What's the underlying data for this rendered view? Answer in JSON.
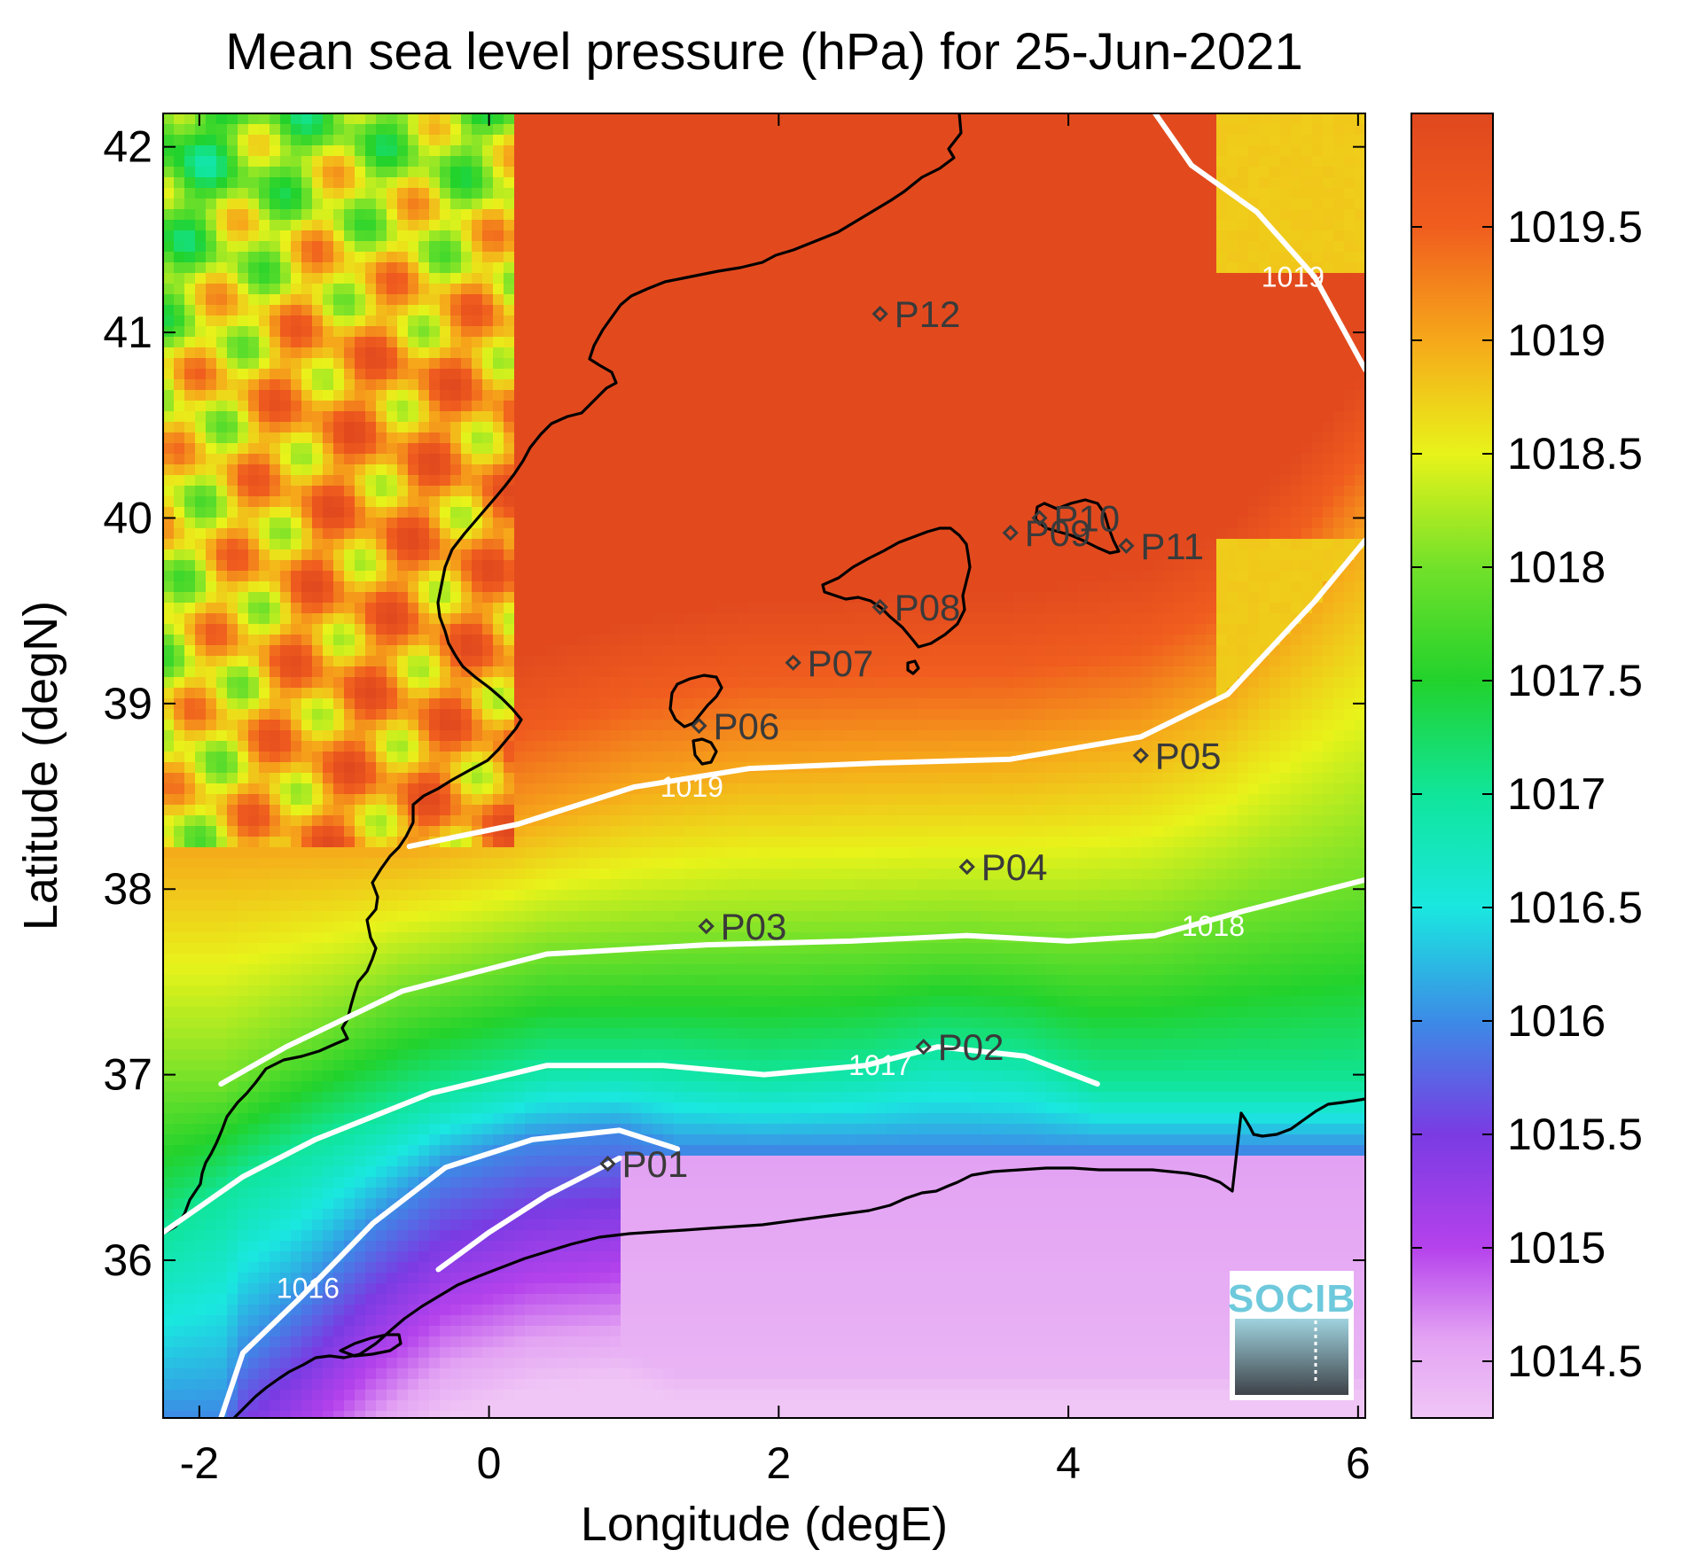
{
  "title": "Mean sea level pressure (hPa) for 25-Jun-2021",
  "chart_data": {
    "type": "heatmap",
    "title": "Mean sea level pressure (hPa) for 25-Jun-2021",
    "xlabel": "Longitude (degE)",
    "ylabel": "Latitude (degN)",
    "xlim": [
      -2.25,
      6.05
    ],
    "ylim": [
      35.15,
      42.18
    ],
    "x_ticks": [
      {
        "value": -2,
        "label": "-2"
      },
      {
        "value": 0,
        "label": "0"
      },
      {
        "value": 2,
        "label": "2"
      },
      {
        "value": 4,
        "label": "4"
      },
      {
        "value": 6,
        "label": "6"
      }
    ],
    "y_ticks": [
      {
        "value": 36,
        "label": "36"
      },
      {
        "value": 37,
        "label": "37"
      },
      {
        "value": 38,
        "label": "38"
      },
      {
        "value": 39,
        "label": "39"
      },
      {
        "value": 40,
        "label": "40"
      },
      {
        "value": 41,
        "label": "41"
      },
      {
        "value": 42,
        "label": "42"
      }
    ],
    "colorbar": {
      "range": [
        1014.25,
        1020.0
      ],
      "ticks": [
        {
          "value": 1014.5,
          "label": "1014.5"
        },
        {
          "value": 1015,
          "label": "1015"
        },
        {
          "value": 1015.5,
          "label": "1015.5"
        },
        {
          "value": 1016,
          "label": "1016"
        },
        {
          "value": 1016.5,
          "label": "1016.5"
        },
        {
          "value": 1017,
          "label": "1017"
        },
        {
          "value": 1017.5,
          "label": "1017.5"
        },
        {
          "value": 1018,
          "label": "1018"
        },
        {
          "value": 1018.5,
          "label": "1018.5"
        },
        {
          "value": 1019,
          "label": "1019"
        },
        {
          "value": 1019.5,
          "label": "1019.5"
        }
      ],
      "colors": [
        {
          "value": 1014.25,
          "color": "#f0c6f6"
        },
        {
          "value": 1014.6,
          "color": "#e3a3f3"
        },
        {
          "value": 1015.0,
          "color": "#b542ec"
        },
        {
          "value": 1015.5,
          "color": "#7a3be3"
        },
        {
          "value": 1016.0,
          "color": "#3c8be6"
        },
        {
          "value": 1016.5,
          "color": "#1ae7e0"
        },
        {
          "value": 1017.0,
          "color": "#10e59a"
        },
        {
          "value": 1017.5,
          "color": "#22d22c"
        },
        {
          "value": 1018.0,
          "color": "#72e12a"
        },
        {
          "value": 1018.5,
          "color": "#e8f31a"
        },
        {
          "value": 1019.0,
          "color": "#f6a81a"
        },
        {
          "value": 1019.5,
          "color": "#f05d1e"
        },
        {
          "value": 1020.0,
          "color": "#e0481e"
        }
      ]
    },
    "contours": [
      {
        "level": 1016,
        "label": "1016",
        "points": [
          [
            -1.85,
            35.15
          ],
          [
            -1.7,
            35.5
          ],
          [
            -1.3,
            35.8
          ],
          [
            -0.8,
            36.2
          ],
          [
            -0.3,
            36.5
          ],
          [
            0.3,
            36.65
          ],
          [
            0.9,
            36.7
          ],
          [
            1.3,
            36.6
          ]
        ],
        "label_at": [
          -1.25,
          35.85
        ]
      },
      {
        "level": 1016,
        "label": "",
        "points": [
          [
            -0.35,
            35.95
          ],
          [
            0.0,
            36.15
          ],
          [
            0.4,
            36.35
          ],
          [
            0.9,
            36.55
          ]
        ],
        "label_at": null
      },
      {
        "level": 1017,
        "label": "1017",
        "points": [
          [
            -2.25,
            36.15
          ],
          [
            -1.7,
            36.45
          ],
          [
            -1.2,
            36.65
          ],
          [
            -0.4,
            36.9
          ],
          [
            0.4,
            37.05
          ],
          [
            1.2,
            37.05
          ],
          [
            1.9,
            37.0
          ],
          [
            2.6,
            37.05
          ],
          [
            3.1,
            37.15
          ],
          [
            3.7,
            37.1
          ],
          [
            4.2,
            36.95
          ]
        ],
        "label_at": [
          2.7,
          37.05
        ]
      },
      {
        "level": 1018,
        "label": "1018",
        "points": [
          [
            -1.85,
            36.95
          ],
          [
            -1.4,
            37.15
          ],
          [
            -0.6,
            37.45
          ],
          [
            0.4,
            37.65
          ],
          [
            1.5,
            37.7
          ],
          [
            2.5,
            37.72
          ],
          [
            3.3,
            37.75
          ],
          [
            4.0,
            37.72
          ],
          [
            4.6,
            37.75
          ],
          [
            5.2,
            37.88
          ],
          [
            6.05,
            38.05
          ]
        ],
        "label_at": [
          5.0,
          37.8
        ]
      },
      {
        "level": 1018,
        "label": "",
        "points": [],
        "label_at": [
          0.7,
          37.65
        ]
      },
      {
        "level": 1019,
        "label": "1019",
        "points": [
          [
            -0.55,
            38.23
          ],
          [
            0.2,
            38.35
          ],
          [
            1.0,
            38.55
          ],
          [
            1.8,
            38.65
          ],
          [
            2.7,
            38.68
          ],
          [
            3.6,
            38.7
          ],
          [
            4.5,
            38.82
          ],
          [
            5.1,
            39.05
          ],
          [
            5.7,
            39.55
          ],
          [
            6.05,
            39.88
          ]
        ],
        "label_at": [
          1.4,
          38.55
        ]
      },
      {
        "level": 1019,
        "label": "1019",
        "points": [
          [
            4.6,
            42.18
          ],
          [
            4.85,
            41.9
          ],
          [
            5.3,
            41.65
          ],
          [
            5.7,
            41.3
          ],
          [
            6.05,
            40.8
          ]
        ],
        "label_at": [
          5.55,
          41.3
        ]
      }
    ],
    "stations": [
      {
        "name": "P01",
        "lon": 0.82,
        "lat": 36.52
      },
      {
        "name": "P02",
        "lon": 3.0,
        "lat": 37.15
      },
      {
        "name": "P03",
        "lon": 1.5,
        "lat": 37.8
      },
      {
        "name": "P04",
        "lon": 3.3,
        "lat": 38.12
      },
      {
        "name": "P05",
        "lon": 4.5,
        "lat": 38.72
      },
      {
        "name": "P06",
        "lon": 1.45,
        "lat": 38.88
      },
      {
        "name": "P07",
        "lon": 2.1,
        "lat": 39.22
      },
      {
        "name": "P08",
        "lon": 2.7,
        "lat": 39.52
      },
      {
        "name": "P09",
        "lon": 3.6,
        "lat": 39.92
      },
      {
        "name": "P10",
        "lon": 3.8,
        "lat": 40.0
      },
      {
        "name": "P11",
        "lon": 4.4,
        "lat": 39.85
      },
      {
        "name": "P12",
        "lon": 2.7,
        "lat": 41.1
      }
    ]
  },
  "logo": {
    "text": "SOCIB"
  },
  "colors": {
    "coast": "#000000",
    "contour": "#ffffff",
    "station": "#3a3a3a",
    "frame": "#000000"
  }
}
